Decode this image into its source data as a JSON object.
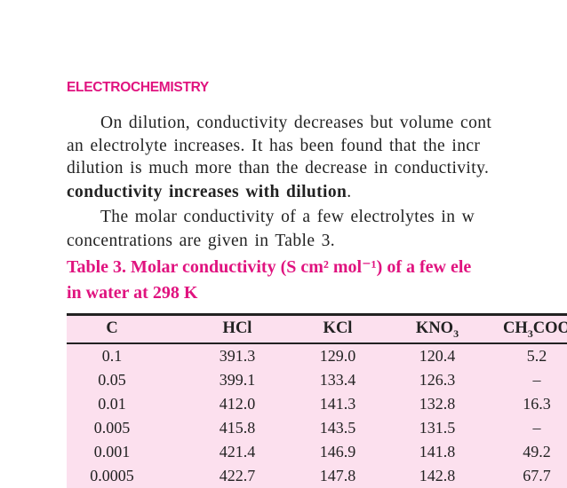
{
  "header": {
    "title": "ELECTROCHEMISTRY"
  },
  "paragraphs": [
    {
      "lines": [
        "On dilution, conductivity decreases but volume cont",
        "an electrolyte increases. It has been found that the incr",
        "dilution is much more than the decrease in conductivity."
      ],
      "bold": "conductivity increases with dilution",
      "end": "."
    },
    {
      "lines": [
        "The molar conductivity of a few electrolytes in w",
        "concentrations are given in Table 3."
      ]
    }
  ],
  "table": {
    "caption": [
      "Table 3. Molar conductivity (S cm² mol⁻¹) of a few ele",
      "in water at 298 K"
    ],
    "header": [
      {
        "text": "C"
      },
      {
        "text": "HCl"
      },
      {
        "text": "KCl"
      },
      {
        "text": "KNO",
        "sub": "3"
      },
      {
        "text": "CH",
        "sub": "3",
        "after": "COO"
      }
    ],
    "rows": [
      [
        "0.1",
        "391.3",
        "129.0",
        "120.4",
        "5.2"
      ],
      [
        "0.05",
        "399.1",
        "133.4",
        "126.3",
        "–"
      ],
      [
        "0.01",
        "412.0",
        "141.3",
        "132.8",
        "16.3"
      ],
      [
        "0.005",
        "415.8",
        "143.5",
        "131.5",
        "–"
      ],
      [
        "0.001",
        "421.4",
        "146.9",
        "141.8",
        "49.2"
      ],
      [
        "0.0005",
        "422.7",
        "147.8",
        "142.8",
        "67.7"
      ]
    ]
  }
}
